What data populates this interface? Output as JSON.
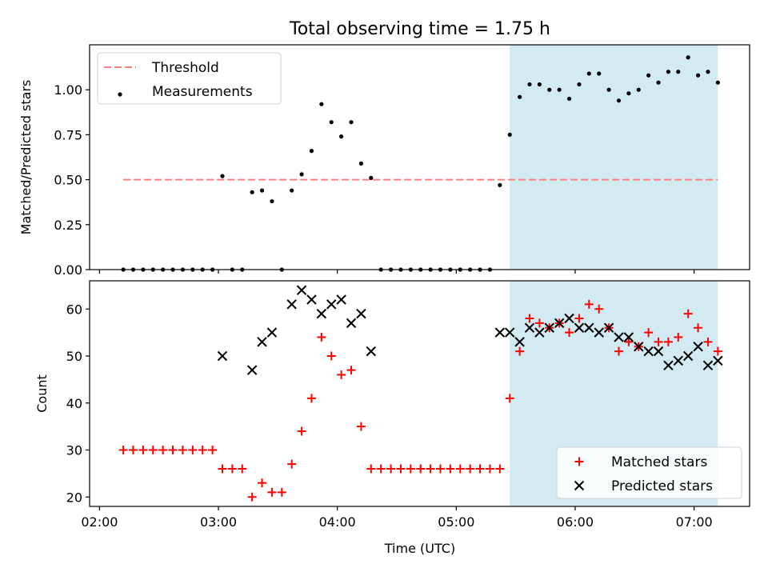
{
  "chart_data": {
    "title": "Total observing time = 1.75 h",
    "xlabel": "Time (UTC)",
    "x_ticks": [
      {
        "t": 2.0,
        "label": "02:00"
      },
      {
        "t": 3.0,
        "label": "03:00"
      },
      {
        "t": 4.0,
        "label": "04:00"
      },
      {
        "t": 5.0,
        "label": "05:00"
      },
      {
        "t": 6.0,
        "label": "06:00"
      },
      {
        "t": 7.0,
        "label": "07:00"
      }
    ],
    "xlim": [
      "01:55",
      "07:28"
    ],
    "highlight_span": {
      "start": "05:27",
      "end": "07:12",
      "color": "#add8e6"
    },
    "panels": [
      {
        "type": "scatter",
        "ylabel": "Matched/Predicted stars",
        "ylim": [
          0,
          1.25
        ],
        "y_ticks": [
          "0.00",
          "0.25",
          "0.50",
          "0.75",
          "1.00"
        ],
        "legend_position": "upper-left",
        "series": [
          {
            "name": "Threshold",
            "kind": "dashed-line",
            "color": "#ff7f7f",
            "points": [
              [
                "02:12",
                0.5
              ],
              [
                "07:12",
                0.5
              ]
            ]
          },
          {
            "name": "Measurements",
            "kind": "dot",
            "color": "#000000",
            "points": [
              [
                "02:12",
                0.0
              ],
              [
                "02:17",
                0.0
              ],
              [
                "02:22",
                0.0
              ],
              [
                "02:27",
                0.0
              ],
              [
                "02:32",
                0.0
              ],
              [
                "02:37",
                0.0
              ],
              [
                "02:42",
                0.0
              ],
              [
                "02:47",
                0.0
              ],
              [
                "02:52",
                0.0
              ],
              [
                "02:57",
                0.0
              ],
              [
                "03:02",
                0.52
              ],
              [
                "03:07",
                0.0
              ],
              [
                "03:12",
                0.0
              ],
              [
                "03:17",
                0.43
              ],
              [
                "03:22",
                0.44
              ],
              [
                "03:27",
                0.38
              ],
              [
                "03:32",
                0.0
              ],
              [
                "03:37",
                0.44
              ],
              [
                "03:42",
                0.53
              ],
              [
                "03:47",
                0.66
              ],
              [
                "03:52",
                0.92
              ],
              [
                "03:57",
                0.82
              ],
              [
                "04:02",
                0.74
              ],
              [
                "04:07",
                0.82
              ],
              [
                "04:12",
                0.59
              ],
              [
                "04:17",
                0.51
              ],
              [
                "04:22",
                0.0
              ],
              [
                "04:27",
                0.0
              ],
              [
                "04:32",
                0.0
              ],
              [
                "04:37",
                0.0
              ],
              [
                "04:42",
                0.0
              ],
              [
                "04:47",
                0.0
              ],
              [
                "04:52",
                0.0
              ],
              [
                "04:57",
                0.0
              ],
              [
                "05:02",
                0.0
              ],
              [
                "05:07",
                0.0
              ],
              [
                "05:12",
                0.0
              ],
              [
                "05:17",
                0.0
              ],
              [
                "05:22",
                0.47
              ],
              [
                "05:27",
                0.75
              ],
              [
                "05:32",
                0.96
              ],
              [
                "05:37",
                1.03
              ],
              [
                "05:42",
                1.03
              ],
              [
                "05:47",
                1.0
              ],
              [
                "05:52",
                1.0
              ],
              [
                "05:57",
                0.95
              ],
              [
                "06:02",
                1.03
              ],
              [
                "06:07",
                1.09
              ],
              [
                "06:12",
                1.09
              ],
              [
                "06:17",
                1.0
              ],
              [
                "06:22",
                0.94
              ],
              [
                "06:27",
                0.98
              ],
              [
                "06:32",
                1.0
              ],
              [
                "06:37",
                1.08
              ],
              [
                "06:42",
                1.04
              ],
              [
                "06:47",
                1.1
              ],
              [
                "06:52",
                1.1
              ],
              [
                "06:57",
                1.18
              ],
              [
                "07:02",
                1.08
              ],
              [
                "07:07",
                1.1
              ],
              [
                "07:12",
                1.04
              ]
            ]
          }
        ]
      },
      {
        "type": "scatter",
        "ylabel": "Count",
        "ylim": [
          18,
          66
        ],
        "y_ticks": [
          "20",
          "30",
          "40",
          "50",
          "60"
        ],
        "legend_position": "lower-right",
        "series": [
          {
            "name": "Matched stars",
            "kind": "plus",
            "color": "#ff0000",
            "points": [
              [
                "02:12",
                30
              ],
              [
                "02:17",
                30
              ],
              [
                "02:22",
                30
              ],
              [
                "02:27",
                30
              ],
              [
                "02:32",
                30
              ],
              [
                "02:37",
                30
              ],
              [
                "02:42",
                30
              ],
              [
                "02:47",
                30
              ],
              [
                "02:52",
                30
              ],
              [
                "02:57",
                30
              ],
              [
                "03:02",
                26
              ],
              [
                "03:07",
                26
              ],
              [
                "03:12",
                26
              ],
              [
                "03:17",
                20
              ],
              [
                "03:22",
                23
              ],
              [
                "03:27",
                21
              ],
              [
                "03:32",
                21
              ],
              [
                "03:37",
                27
              ],
              [
                "03:42",
                34
              ],
              [
                "03:47",
                41
              ],
              [
                "03:52",
                54
              ],
              [
                "03:57",
                50
              ],
              [
                "04:02",
                46
              ],
              [
                "04:07",
                47
              ],
              [
                "04:12",
                35
              ],
              [
                "04:17",
                26
              ],
              [
                "04:22",
                26
              ],
              [
                "04:27",
                26
              ],
              [
                "04:32",
                26
              ],
              [
                "04:37",
                26
              ],
              [
                "04:42",
                26
              ],
              [
                "04:47",
                26
              ],
              [
                "04:52",
                26
              ],
              [
                "04:57",
                26
              ],
              [
                "05:02",
                26
              ],
              [
                "05:07",
                26
              ],
              [
                "05:12",
                26
              ],
              [
                "05:17",
                26
              ],
              [
                "05:22",
                26
              ],
              [
                "05:27",
                41
              ],
              [
                "05:32",
                51
              ],
              [
                "05:37",
                58
              ],
              [
                "05:42",
                57
              ],
              [
                "05:47",
                56
              ],
              [
                "05:52",
                57
              ],
              [
                "05:57",
                55
              ],
              [
                "06:02",
                58
              ],
              [
                "06:07",
                61
              ],
              [
                "06:12",
                60
              ],
              [
                "06:17",
                56
              ],
              [
                "06:22",
                51
              ],
              [
                "06:27",
                53
              ],
              [
                "06:32",
                52
              ],
              [
                "06:37",
                55
              ],
              [
                "06:42",
                53
              ],
              [
                "06:47",
                53
              ],
              [
                "06:52",
                54
              ],
              [
                "06:57",
                59
              ],
              [
                "07:02",
                56
              ],
              [
                "07:07",
                53
              ],
              [
                "07:12",
                51
              ]
            ]
          },
          {
            "name": "Predicted stars",
            "kind": "x",
            "color": "#000000",
            "points": [
              [
                "03:02",
                50
              ],
              [
                "03:17",
                47
              ],
              [
                "03:22",
                53
              ],
              [
                "03:27",
                55
              ],
              [
                "03:37",
                61
              ],
              [
                "03:42",
                64
              ],
              [
                "03:47",
                62
              ],
              [
                "03:52",
                59
              ],
              [
                "03:57",
                61
              ],
              [
                "04:02",
                62
              ],
              [
                "04:07",
                57
              ],
              [
                "04:12",
                59
              ],
              [
                "04:17",
                51
              ],
              [
                "05:22",
                55
              ],
              [
                "05:27",
                55
              ],
              [
                "05:32",
                53
              ],
              [
                "05:37",
                56
              ],
              [
                "05:42",
                55
              ],
              [
                "05:47",
                56
              ],
              [
                "05:52",
                57
              ],
              [
                "05:57",
                58
              ],
              [
                "06:02",
                56
              ],
              [
                "06:07",
                56
              ],
              [
                "06:12",
                55
              ],
              [
                "06:17",
                56
              ],
              [
                "06:22",
                54
              ],
              [
                "06:27",
                54
              ],
              [
                "06:32",
                52
              ],
              [
                "06:37",
                51
              ],
              [
                "06:42",
                51
              ],
              [
                "06:47",
                48
              ],
              [
                "06:52",
                49
              ],
              [
                "06:57",
                50
              ],
              [
                "07:02",
                52
              ],
              [
                "07:07",
                48
              ],
              [
                "07:12",
                49
              ]
            ]
          }
        ]
      }
    ]
  }
}
